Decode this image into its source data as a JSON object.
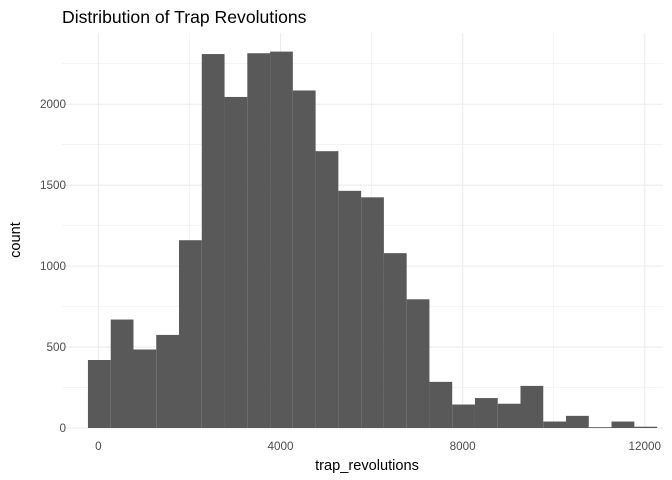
{
  "chart_data": {
    "type": "bar",
    "title": "Distribution of Trap Revolutions",
    "xlabel": "trap_revolutions",
    "ylabel": "count",
    "xlim": [
      -800,
      12400
    ],
    "ylim": [
      0,
      2440
    ],
    "x_ticks": [
      0,
      4000,
      8000,
      12000
    ],
    "x_tick_labels": [
      "0",
      "4000",
      "8000",
      "12000"
    ],
    "y_ticks": [
      0,
      500,
      1000,
      1500,
      2000
    ],
    "y_tick_labels": [
      "0",
      "500",
      "1000",
      "1500",
      "2000"
    ],
    "grid": true,
    "legend": "none",
    "bar_color": "#595959",
    "bins": [
      {
        "x0": -230,
        "x1": 270,
        "count": 420
      },
      {
        "x0": 270,
        "x1": 770,
        "count": 670
      },
      {
        "x0": 770,
        "x1": 1270,
        "count": 485
      },
      {
        "x0": 1270,
        "x1": 1770,
        "count": 575
      },
      {
        "x0": 1770,
        "x1": 2270,
        "count": 1160
      },
      {
        "x0": 2270,
        "x1": 2770,
        "count": 2310
      },
      {
        "x0": 2770,
        "x1": 3270,
        "count": 2045
      },
      {
        "x0": 3270,
        "x1": 3770,
        "count": 2315
      },
      {
        "x0": 3770,
        "x1": 4270,
        "count": 2325
      },
      {
        "x0": 4270,
        "x1": 4770,
        "count": 2085
      },
      {
        "x0": 4770,
        "x1": 5270,
        "count": 1710
      },
      {
        "x0": 5270,
        "x1": 5770,
        "count": 1465
      },
      {
        "x0": 5770,
        "x1": 6270,
        "count": 1425
      },
      {
        "x0": 6270,
        "x1": 6770,
        "count": 1080
      },
      {
        "x0": 6770,
        "x1": 7270,
        "count": 795
      },
      {
        "x0": 7270,
        "x1": 7770,
        "count": 285
      },
      {
        "x0": 7770,
        "x1": 8270,
        "count": 145
      },
      {
        "x0": 8270,
        "x1": 8770,
        "count": 185
      },
      {
        "x0": 8770,
        "x1": 9270,
        "count": 150
      },
      {
        "x0": 9270,
        "x1": 9770,
        "count": 260
      },
      {
        "x0": 9770,
        "x1": 10270,
        "count": 40
      },
      {
        "x0": 10270,
        "x1": 10770,
        "count": 75
      },
      {
        "x0": 10770,
        "x1": 11270,
        "count": 5
      },
      {
        "x0": 11270,
        "x1": 11770,
        "count": 40
      },
      {
        "x0": 11770,
        "x1": 12270,
        "count": 8
      }
    ]
  }
}
